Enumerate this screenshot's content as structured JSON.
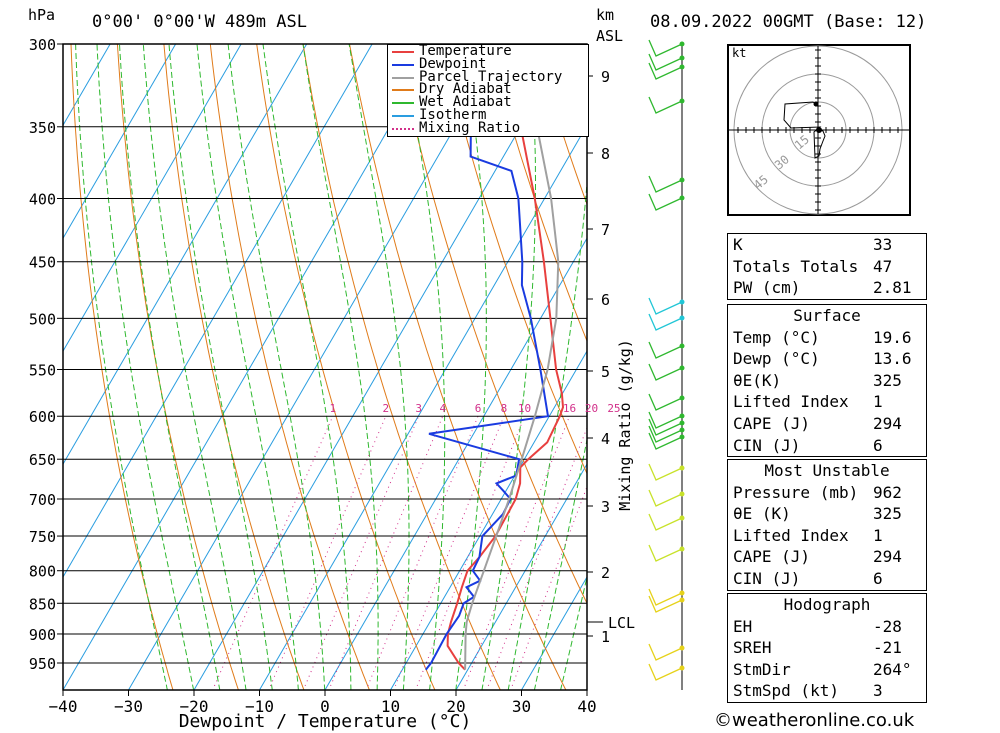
{
  "header": {
    "pressure_unit": "hPa",
    "location": "0°00' 0°00'W  489m  ASL",
    "km_unit": "km",
    "asl_label": "ASL",
    "datetime": "08.09.2022  00GMT  (Base: 12)"
  },
  "chart_data": {
    "type": "line",
    "title": "0°00' 0°00'W  489m  ASL",
    "xlabel": "Dewpoint / Temperature (°C)",
    "ylabel": "hPa",
    "mixing_ratio_label": "Mixing Ratio (g/kg)",
    "xlim": [
      -40,
      40
    ],
    "ylim": [
      990,
      300
    ],
    "log_y": true,
    "skewed_isotherms": true,
    "x_ticks": [
      "-40",
      "-30",
      "-20",
      "-10",
      "0",
      "10",
      "20",
      "30",
      "40"
    ],
    "pressure_ticks": [
      "300",
      "350",
      "400",
      "450",
      "500",
      "550",
      "600",
      "650",
      "700",
      "750",
      "800",
      "850",
      "900",
      "950"
    ],
    "km_ticks": [
      "1",
      "2",
      "3",
      "4",
      "5",
      "6",
      "7",
      "8",
      "9"
    ],
    "lcl_label": "LCL",
    "mixing_ratio_ticks": [
      "1",
      "2",
      "3",
      "4",
      "6",
      "8",
      "10",
      "16",
      "20",
      "25"
    ],
    "series": [
      {
        "name": "Temperature",
        "color": "#e8403f",
        "points": [
          [
            962,
            19.6
          ],
          [
            950,
            18
          ],
          [
            920,
            14.8
          ],
          [
            900,
            13.8
          ],
          [
            880,
            13.2
          ],
          [
            850,
            12.5
          ],
          [
            825,
            11.8
          ],
          [
            800,
            11.2
          ],
          [
            780,
            11.8
          ],
          [
            750,
            12.4
          ],
          [
            700,
            12.2
          ],
          [
            680,
            11.5
          ],
          [
            660,
            10.1
          ],
          [
            650,
            10.6
          ],
          [
            630,
            12.0
          ],
          [
            600,
            11.6
          ],
          [
            590,
            11.3
          ],
          [
            575,
            9.9
          ],
          [
            550,
            6.9
          ],
          [
            500,
            1.5
          ],
          [
            450,
            -4.5
          ],
          [
            400,
            -11.5
          ],
          [
            350,
            -20
          ],
          [
            300,
            -30
          ]
        ]
      },
      {
        "name": "Dewpoint",
        "color": "#1a3be0",
        "points": [
          [
            962,
            13.6
          ],
          [
            950,
            13.8
          ],
          [
            900,
            13.6
          ],
          [
            870,
            13.9
          ],
          [
            850,
            13.5
          ],
          [
            840,
            14.5
          ],
          [
            825,
            12.5
          ],
          [
            815,
            14
          ],
          [
            800,
            12
          ],
          [
            780,
            11.8
          ],
          [
            750,
            10.4
          ],
          [
            720,
            11.6
          ],
          [
            700,
            11.4
          ],
          [
            690,
            9.7
          ],
          [
            680,
            7.9
          ],
          [
            670,
            10.2
          ],
          [
            650,
            9.2
          ],
          [
            620,
            -6.8
          ],
          [
            600,
            9.8
          ],
          [
            550,
            4.5
          ],
          [
            500,
            -1.5
          ],
          [
            470,
            -5.8
          ],
          [
            450,
            -7.8
          ],
          [
            400,
            -14
          ],
          [
            380,
            -17.5
          ],
          [
            370,
            -25
          ],
          [
            350,
            -27.6
          ],
          [
            330,
            -31.5
          ],
          [
            310,
            -40.5
          ],
          [
            300,
            -41.5
          ]
        ]
      },
      {
        "name": "Parcel Trajectory",
        "color": "#a0a0a0",
        "points": [
          [
            962,
            19.6
          ],
          [
            900,
            16.5
          ],
          [
            880,
            15.6
          ],
          [
            850,
            14.8
          ],
          [
            800,
            13.7
          ],
          [
            750,
            12.5
          ],
          [
            700,
            11.2
          ],
          [
            650,
            9.6
          ],
          [
            600,
            7.8
          ],
          [
            550,
            5.6
          ],
          [
            500,
            2.4
          ],
          [
            450,
            -2.3
          ],
          [
            400,
            -9
          ],
          [
            350,
            -17.5
          ],
          [
            300,
            -28.5
          ]
        ]
      }
    ],
    "background_lines": [
      "Dry Adiabat",
      "Wet Adiabat",
      "Isotherm",
      "Mixing Ratio"
    ]
  },
  "legend": [
    {
      "label": "Temperature",
      "color": "#e8403f",
      "style": "solid"
    },
    {
      "label": "Dewpoint",
      "color": "#1a3be0",
      "style": "solid"
    },
    {
      "label": "Parcel Trajectory",
      "color": "#a0a0a0",
      "style": "solid"
    },
    {
      "label": "Dry Adiabat",
      "color": "#e07b1a",
      "style": "solid"
    },
    {
      "label": "Wet Adiabat",
      "color": "#2fb82f",
      "style": "solid"
    },
    {
      "label": "Isotherm",
      "color": "#2a9de0",
      "style": "solid"
    },
    {
      "label": "Mixing Ratio",
      "color": "#d2308a",
      "style": "dotted"
    }
  ],
  "hodograph": {
    "unit_label": "kt",
    "ring_labels": [
      "15",
      "30",
      "45"
    ]
  },
  "indices": {
    "k": {
      "label": "K",
      "value": "33"
    },
    "tt": {
      "label": "Totals Totals",
      "value": "47"
    },
    "pw": {
      "label": "PW (cm)",
      "value": "2.81"
    }
  },
  "surface": {
    "title": "Surface",
    "rows": [
      {
        "label": "Temp (°C)",
        "value": "19.6"
      },
      {
        "label": "Dewp (°C)",
        "value": "13.6"
      },
      {
        "label": "θE(K)",
        "value": "325"
      },
      {
        "label": "Lifted Index",
        "value": "1"
      },
      {
        "label": "CAPE (J)",
        "value": "294"
      },
      {
        "label": "CIN (J)",
        "value": "6"
      }
    ]
  },
  "most_unstable": {
    "title": "Most Unstable",
    "rows": [
      {
        "label": "Pressure (mb)",
        "value": "962"
      },
      {
        "label": "θE (K)",
        "value": "325"
      },
      {
        "label": "Lifted Index",
        "value": "1"
      },
      {
        "label": "CAPE (J)",
        "value": "294"
      },
      {
        "label": "CIN (J)",
        "value": "6"
      }
    ]
  },
  "hodograph_table": {
    "title": "Hodograph",
    "rows": [
      {
        "label": "EH",
        "value": "-28"
      },
      {
        "label": "SREH",
        "value": "-21"
      },
      {
        "label": "StmDir",
        "value": "264°"
      },
      {
        "label": "StmSpd (kt)",
        "value": "3"
      }
    ]
  },
  "footer": "©weatheronline.co.uk"
}
